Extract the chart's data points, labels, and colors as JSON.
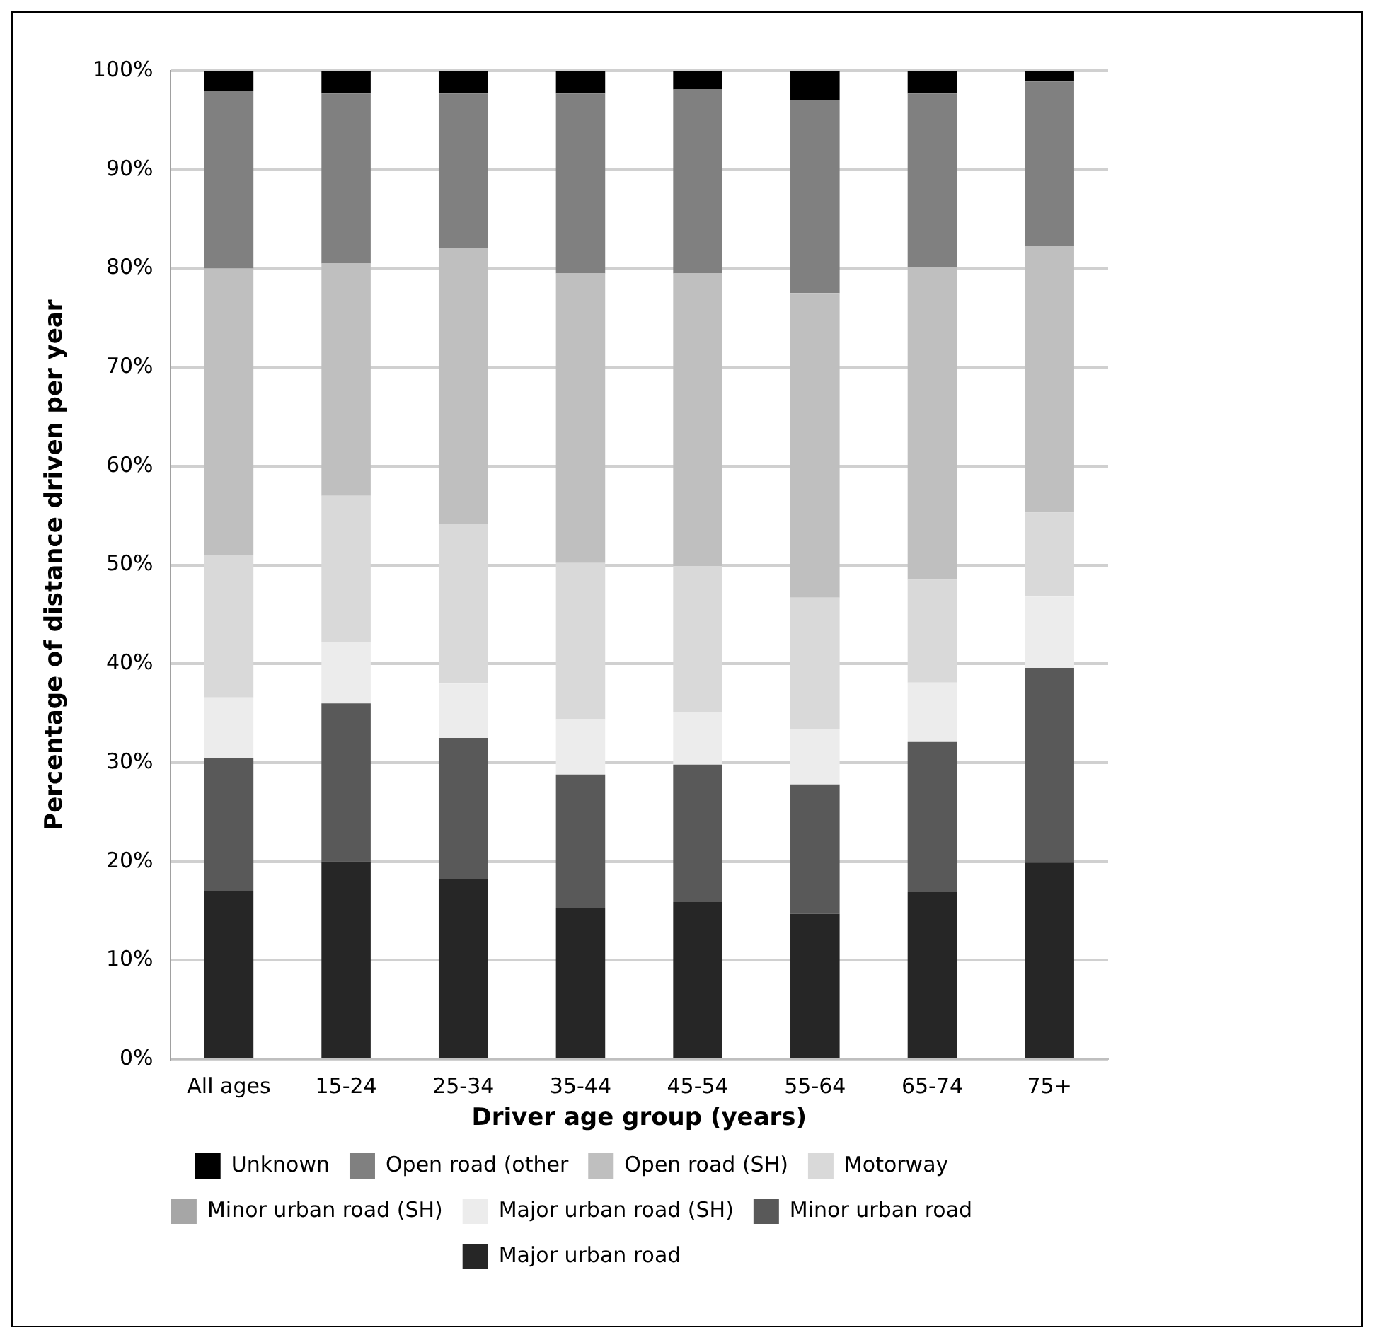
{
  "chart_data": {
    "type": "bar",
    "stacked": true,
    "xlabel": "Driver age group (years)",
    "ylabel": "Percentage of distance driven per year",
    "categories": [
      "All ages",
      "15-24",
      "25-34",
      "35-44",
      "45-54",
      "55-64",
      "65-74",
      "75+"
    ],
    "series": [
      {
        "name": "Major urban road",
        "color": "#262626",
        "values": [
          17,
          20,
          18.2,
          15.3,
          15.9,
          14.7,
          16.9,
          19.9
        ]
      },
      {
        "name": "Minor urban road",
        "color": "#595959",
        "values": [
          13.5,
          16,
          14.3,
          13.5,
          13.9,
          13.1,
          15.2,
          19.7
        ]
      },
      {
        "name": "Major urban road (SH)",
        "color": "#ececec",
        "values": [
          6.1,
          6.2,
          5.5,
          5.6,
          5.3,
          5.6,
          6,
          7.2
        ]
      },
      {
        "name": "Minor urban road (SH)",
        "color": "#a6a6a6",
        "values": [
          0,
          0,
          0,
          0,
          0,
          0,
          0,
          0
        ]
      },
      {
        "name": "Motorway",
        "color": "#d9d9d9",
        "values": [
          14.4,
          14.8,
          16.2,
          15.8,
          14.8,
          13.3,
          10.4,
          8.5
        ]
      },
      {
        "name": "Open road (SH)",
        "color": "#bfbfbf",
        "values": [
          29,
          23.5,
          27.8,
          29.3,
          29.6,
          30.8,
          31.6,
          27
        ]
      },
      {
        "name": "Open road (other",
        "color": "#808080",
        "values": [
          18,
          17.2,
          15.7,
          18.2,
          18.6,
          19.5,
          17.6,
          16.6
        ]
      },
      {
        "name": "Unknown",
        "color": "#000000",
        "values": [
          2,
          2.3,
          2.3,
          2.3,
          1.9,
          3,
          2.3,
          1.1
        ]
      }
    ],
    "ylim": [
      0,
      100
    ],
    "yticks": [
      {
        "value": 0,
        "label": "0%"
      },
      {
        "value": 10,
        "label": "10%"
      },
      {
        "value": 20,
        "label": "20%"
      },
      {
        "value": 30,
        "label": "30%"
      },
      {
        "value": 40,
        "label": "40%"
      },
      {
        "value": 50,
        "label": "50%"
      },
      {
        "value": 60,
        "label": "60%"
      },
      {
        "value": 70,
        "label": "70%"
      },
      {
        "value": 80,
        "label": "80%"
      },
      {
        "value": 90,
        "label": "90%"
      },
      {
        "value": 100,
        "label": "100%"
      }
    ],
    "grid": "y",
    "legend": "bottom"
  }
}
